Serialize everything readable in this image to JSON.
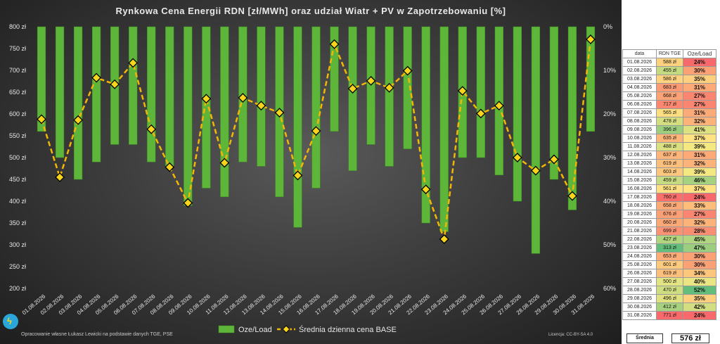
{
  "title": "Rynkowa  Cena  Energii  RDN  [zł/MWh]  oraz  udział  Wiatr  +  PV  w  Zapotrzebowaniu  [%]",
  "footer": "Opracowanie własne Łukasz Lewicki na podstawie danych TGE, PSE",
  "license": "Licencja: CC-BY-SA 4.0",
  "colors": {
    "bar": "#5db53a",
    "line": "#f2b705",
    "marker": "#f7d51d"
  },
  "chart_data": {
    "type": "bar",
    "title": "Rynkowa  Cena  Energii  RDN  [zł/MWh]  oraz  udział  Wiatr  +  PV  w  Zapotrzebowaniu  [%]",
    "categories": [
      "01.08.2026",
      "02.08.2026",
      "03.08.2026",
      "04.08.2026",
      "05.08.2026",
      "06.08.2026",
      "07.08.2026",
      "08.08.2026",
      "09.08.2026",
      "10.08.2026",
      "11.08.2026",
      "12.08.2026",
      "13.08.2026",
      "14.08.2026",
      "15.08.2026",
      "16.08.2026",
      "17.08.2026",
      "18.08.2026",
      "19.08.2026",
      "20.08.2026",
      "21.08.2026",
      "22.08.2026",
      "23.08.2026",
      "24.08.2026",
      "25.08.2026",
      "26.08.2026",
      "27.08.2026",
      "28.08.2026",
      "29.08.2026",
      "30.08.2026",
      "31.08.2026"
    ],
    "series": [
      {
        "name": "Oze/Load",
        "type": "bar",
        "axis": "right",
        "values": [
          24,
          30,
          35,
          31,
          27,
          27,
          31,
          32,
          41,
          37,
          39,
          31,
          32,
          39,
          46,
          37,
          24,
          33,
          27,
          32,
          28,
          45,
          47,
          30,
          30,
          34,
          40,
          52,
          35,
          42,
          24
        ]
      },
      {
        "name": "Średnia dzienna cena BASE",
        "type": "line",
        "axis": "left",
        "values": [
          588,
          455,
          586,
          683,
          668,
          717,
          565,
          478,
          396,
          635,
          488,
          637,
          619,
          603,
          459,
          561,
          760,
          658,
          676,
          660,
          699,
          427,
          313,
          653,
          601,
          619,
          500,
          470,
          496,
          412,
          771
        ]
      }
    ],
    "y_left": {
      "min": 200,
      "max": 800,
      "ticks": [
        "800 zł",
        "750 zł",
        "700 zł",
        "650 zł",
        "600 zł",
        "550 zł",
        "500 zł",
        "450 zł",
        "400 zł",
        "350 zł",
        "300 zł",
        "250 zł",
        "200 zł"
      ]
    },
    "y_right": {
      "min": 0,
      "max": 60,
      "inverted": true,
      "ticks": [
        "0%",
        "10%",
        "20%",
        "30%",
        "40%",
        "50%",
        "60%"
      ]
    },
    "legend": {
      "placement": "bottom",
      "items": [
        "Oze/Load",
        "Średnia dzienna cena BASE"
      ]
    },
    "grid": false
  },
  "table": {
    "headers": [
      "data",
      "RDN TGE",
      "Oze/Load"
    ],
    "rows": [
      [
        "01.08.2026",
        "588 zł",
        "24%"
      ],
      [
        "02.08.2026",
        "455 zł",
        "30%"
      ],
      [
        "03.08.2026",
        "586 zł",
        "35%"
      ],
      [
        "04.08.2026",
        "683 zł",
        "31%"
      ],
      [
        "05.08.2026",
        "668 zł",
        "27%"
      ],
      [
        "06.08.2026",
        "717 zł",
        "27%"
      ],
      [
        "07.08.2026",
        "565 zł",
        "31%"
      ],
      [
        "08.08.2026",
        "478 zł",
        "32%"
      ],
      [
        "09.08.2026",
        "396 zł",
        "41%"
      ],
      [
        "10.08.2026",
        "635 zł",
        "37%"
      ],
      [
        "11.08.2026",
        "488 zł",
        "39%"
      ],
      [
        "12.08.2026",
        "637 zł",
        "31%"
      ],
      [
        "13.08.2026",
        "619 zł",
        "32%"
      ],
      [
        "14.08.2026",
        "603 zł",
        "39%"
      ],
      [
        "15.08.2026",
        "459 zł",
        "46%"
      ],
      [
        "16.08.2026",
        "561 zł",
        "37%"
      ],
      [
        "17.08.2026",
        "760 zł",
        "24%"
      ],
      [
        "18.08.2026",
        "658 zł",
        "33%"
      ],
      [
        "19.08.2026",
        "676 zł",
        "27%"
      ],
      [
        "20.08.2026",
        "660 zł",
        "32%"
      ],
      [
        "21.08.2026",
        "699 zł",
        "28%"
      ],
      [
        "22.08.2026",
        "427 zł",
        "45%"
      ],
      [
        "23.08.2026",
        "313 zł",
        "47%"
      ],
      [
        "24.08.2026",
        "653 zł",
        "30%"
      ],
      [
        "25.08.2026",
        "601 zł",
        "30%"
      ],
      [
        "26.08.2026",
        "619 zł",
        "34%"
      ],
      [
        "27.08.2026",
        "500 zł",
        "40%"
      ],
      [
        "28.08.2026",
        "470 zł",
        "52%"
      ],
      [
        "29.08.2026",
        "496 zł",
        "35%"
      ],
      [
        "30.08.2026",
        "412 zł",
        "42%"
      ],
      [
        "31.08.2026",
        "771 zł",
        "24%"
      ]
    ],
    "avg_label": "Średnia",
    "avg_value": "576 zł"
  }
}
